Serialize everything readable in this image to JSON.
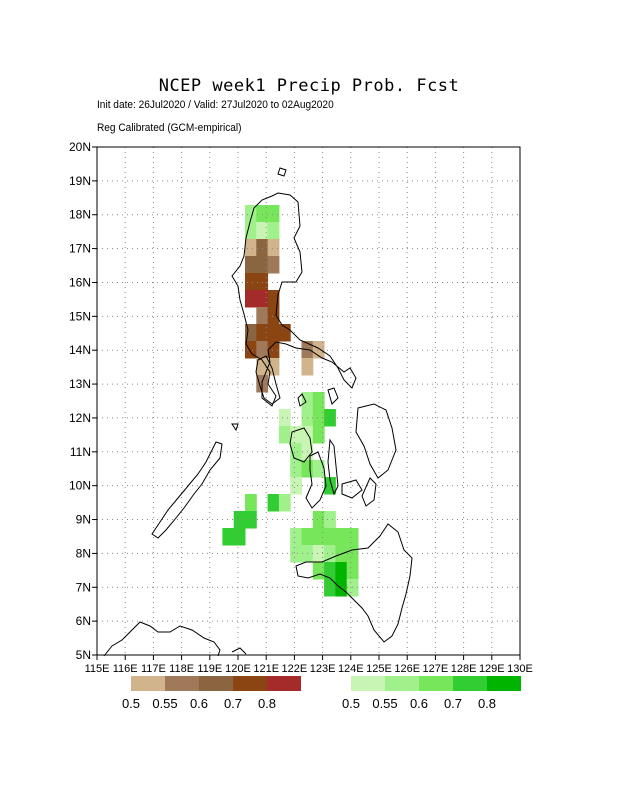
{
  "title": "NCEP week1 Precip Prob. Fcst",
  "subtitle_line1": "Init date: 26Jul2020 / Valid: 27Jul2020 to 02Aug2020",
  "subtitle_line2": "Reg Calibrated (GCM-empirical)",
  "map": {
    "lat_range": [
      5,
      20
    ],
    "lon_range": [
      115,
      130
    ],
    "lat_labels": [
      "5N",
      "6N",
      "7N",
      "8N",
      "9N",
      "10N",
      "11N",
      "12N",
      "13N",
      "14N",
      "15N",
      "16N",
      "17N",
      "18N",
      "19N",
      "20N"
    ],
    "lon_labels": [
      "115E",
      "116E",
      "117E",
      "118E",
      "119E",
      "120E",
      "121E",
      "122E",
      "123E",
      "124E",
      "125E",
      "126E",
      "127E",
      "128E",
      "129E",
      "130E"
    ],
    "grid": "dotted",
    "dry_colors": [
      "#d2b48c",
      "#a0785a",
      "#8b6540",
      "#8b4513",
      "#a52a2a"
    ],
    "wet_colors": [
      "#c8f5b4",
      "#a0f08c",
      "#78e65a",
      "#32cd32",
      "#00b400"
    ],
    "cells": [
      [
        120,
        18,
        "w1"
      ],
      [
        121,
        18,
        "w2"
      ],
      [
        122,
        18,
        "w2"
      ],
      [
        120,
        17,
        "w1"
      ],
      [
        121,
        17,
        "w0"
      ],
      [
        122,
        17,
        "w1"
      ],
      [
        120,
        16,
        "d0"
      ],
      [
        121,
        16,
        "d2"
      ],
      [
        122,
        16,
        "d0"
      ],
      [
        120,
        15,
        "d2"
      ],
      [
        121,
        15,
        "d2"
      ],
      [
        122,
        15,
        "d1"
      ],
      [
        120,
        14,
        "d3"
      ],
      [
        121,
        14,
        "d3"
      ],
      [
        120,
        13,
        "d4"
      ],
      [
        121,
        13,
        "d4"
      ],
      [
        122,
        13,
        "d3"
      ],
      [
        121,
        12,
        "d1"
      ],
      [
        122,
        12,
        "d3"
      ],
      [
        120,
        11,
        "d2"
      ],
      [
        121,
        11,
        "d3"
      ],
      [
        122,
        11,
        "d3"
      ],
      [
        123,
        11,
        "d3"
      ],
      [
        120,
        10,
        "d3"
      ],
      [
        121,
        10,
        "d1"
      ],
      [
        122,
        10,
        "d3"
      ],
      [
        121,
        9,
        "d0"
      ],
      [
        122,
        9,
        "d0"
      ],
      [
        121,
        8,
        "d1"
      ],
      [
        125,
        10,
        "d1"
      ],
      [
        126,
        10,
        "d0"
      ],
      [
        125,
        9,
        "d0"
      ],
      [
        125,
        7,
        "w1"
      ],
      [
        126,
        7,
        "w2"
      ],
      [
        123,
        6,
        "w0"
      ],
      [
        125,
        6,
        "w1"
      ],
      [
        126,
        6,
        "w2"
      ],
      [
        127,
        6,
        "w3"
      ],
      [
        123,
        5,
        "w1"
      ],
      [
        124,
        5,
        "w0"
      ],
      [
        125,
        5,
        "w0"
      ],
      [
        126,
        5,
        "w2"
      ],
      [
        124,
        4,
        "w1"
      ],
      [
        125,
        4,
        "w0"
      ],
      [
        124,
        3,
        "w1"
      ],
      [
        125,
        3,
        "w2"
      ],
      [
        126,
        3,
        "w1"
      ],
      [
        124,
        2,
        "w0"
      ],
      [
        127,
        2,
        "w3"
      ],
      [
        120,
        1,
        "w2"
      ],
      [
        122,
        1,
        "w3"
      ],
      [
        123,
        1,
        "w1"
      ],
      [
        119,
        0,
        "w3"
      ],
      [
        120,
        0,
        "w3"
      ],
      [
        126,
        0,
        "w2"
      ],
      [
        127,
        0,
        "w1"
      ],
      [
        118,
        -1,
        "w3"
      ],
      [
        119,
        -1,
        "w3"
      ],
      [
        124,
        -1,
        "w1"
      ],
      [
        125,
        -1,
        "w2"
      ],
      [
        126,
        -1,
        "w2"
      ],
      [
        127,
        -1,
        "w2"
      ],
      [
        128,
        -1,
        "w2"
      ],
      [
        129,
        -1,
        "w2"
      ],
      [
        124,
        -2,
        "w1"
      ],
      [
        125,
        -2,
        "w1"
      ],
      [
        126,
        -2,
        "w0"
      ],
      [
        127,
        -2,
        "w1"
      ],
      [
        128,
        -2,
        "w2"
      ],
      [
        129,
        -2,
        "w2"
      ],
      [
        126,
        -3,
        "w2"
      ],
      [
        127,
        -3,
        "w3"
      ],
      [
        128,
        -3,
        "w4"
      ],
      [
        129,
        -3,
        "w2"
      ],
      [
        127,
        -4,
        "w3"
      ],
      [
        128,
        -4,
        "w4"
      ],
      [
        129,
        -4,
        "w1"
      ]
    ]
  },
  "legend": {
    "dry_labels": [
      "0.5",
      "0.55",
      "0.6",
      "0.7",
      "0.8"
    ],
    "wet_labels": [
      "0.5",
      "0.55",
      "0.6",
      "0.7",
      "0.8"
    ]
  }
}
